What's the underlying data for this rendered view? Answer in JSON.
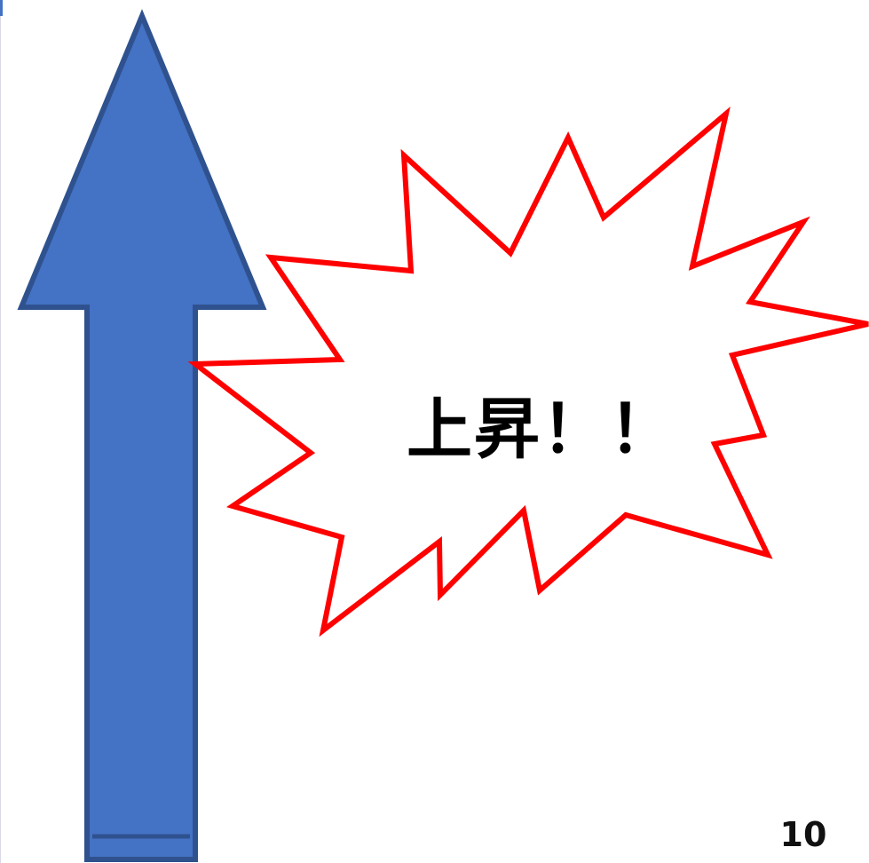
{
  "slide": {
    "burst_text": "上昇！！",
    "page_number": "10"
  },
  "colors": {
    "arrow_fill": "#4472c4",
    "arrow_outline": "#2f528f",
    "burst_outline": "#ff0000",
    "burst_fill": "#ffffff",
    "text": "#000000"
  },
  "icons": {
    "arrow": "up-arrow-icon",
    "burst": "explosion-burst-icon"
  }
}
